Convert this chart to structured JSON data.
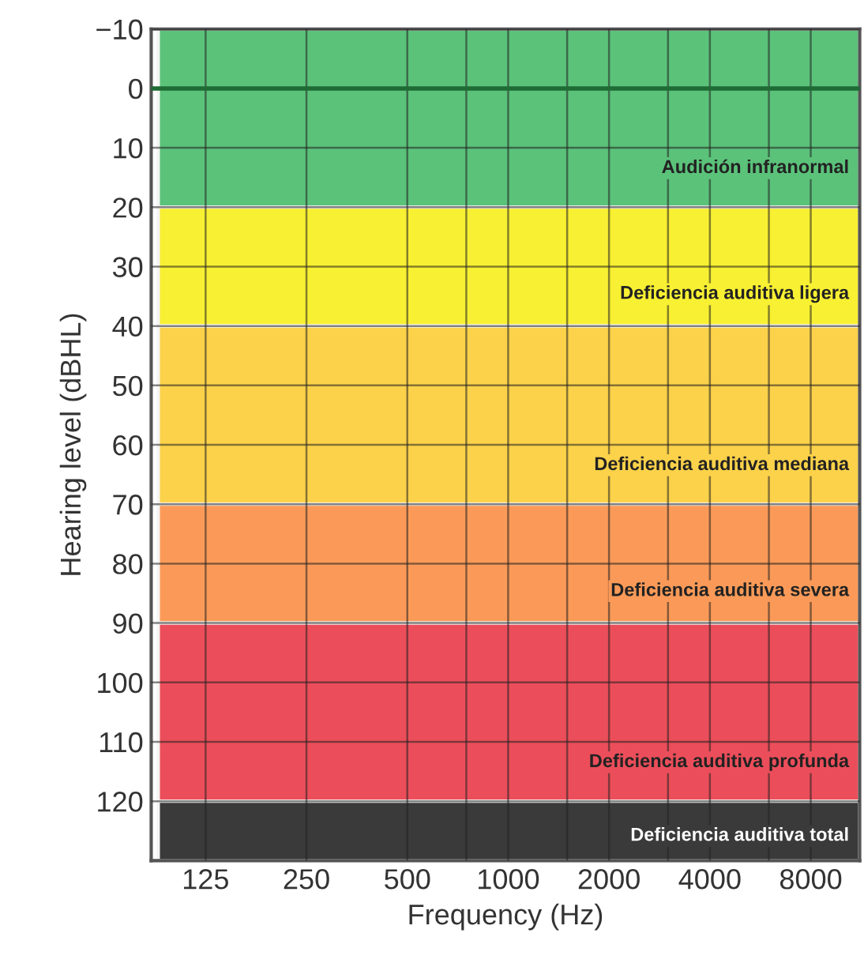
{
  "chart_data": {
    "type": "line",
    "xlabel": "Frequency (Hz)",
    "ylabel": "Hearing level (dBHL)",
    "log": "x",
    "xlim": [
      86,
      11200
    ],
    "xticks": [
      125,
      250,
      500,
      {
        "value": 750,
        "label": null
      },
      1000,
      {
        "value": 1500,
        "label": null
      },
      2000,
      {
        "value": 3000,
        "label": null
      },
      4000,
      {
        "value": 6000,
        "label": null
      },
      8000
    ],
    "ylim": [
      130,
      -10
    ],
    "yticks": [
      {
        "value": -10,
        "label": "−10"
      },
      0,
      10,
      20,
      30,
      40,
      50,
      60,
      70,
      80,
      90,
      100,
      110,
      120
    ],
    "grid": true,
    "ref_lines": [
      {
        "axis": "y",
        "value": 0,
        "color": "#1e6b35"
      }
    ],
    "bands": [
      {
        "axis": "y",
        "from": -10,
        "to": 20,
        "label": "Audición infranormal",
        "color": "#5bc27a"
      },
      {
        "axis": "y",
        "from": 20,
        "to": 40,
        "label": "Deficiencia auditiva ligera",
        "color": "#f8f032"
      },
      {
        "axis": "y",
        "from": 40,
        "to": 70,
        "label": "Deficiencia auditiva mediana",
        "color": "#fcd24a"
      },
      {
        "axis": "y",
        "from": 70,
        "to": 90,
        "label": "Deficiencia auditiva severa",
        "color": "#fb9a58"
      },
      {
        "axis": "y",
        "from": 90,
        "to": 120,
        "label": "Deficiencia auditiva profunda",
        "color": "#eb4e5a"
      },
      {
        "axis": "y",
        "from": 120,
        "to": 130,
        "label": "Deficiencia auditiva total",
        "color": "#3a3a3a"
      }
    ]
  }
}
